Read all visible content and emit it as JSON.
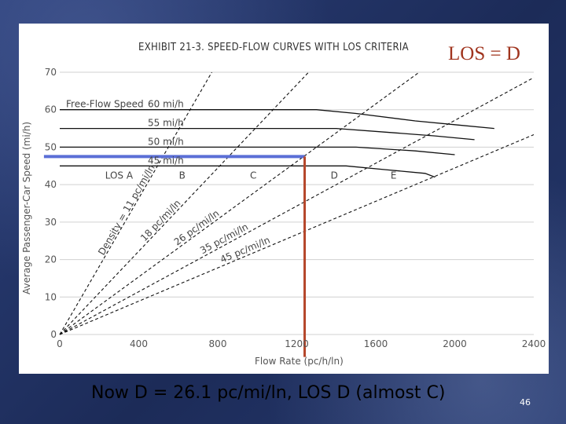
{
  "slide": {
    "caption": "Now D = 26.1 pc/mi/ln, LOS D (almost C)",
    "page_number": "46",
    "background_color": "#1c2b58"
  },
  "chart_data": {
    "type": "line",
    "title": "EXHIBIT 21-3.  SPEED-FLOW CURVES WITH LOS CRITERIA",
    "overlay_label": "LOS = D",
    "xlabel": "Flow Rate (pc/h/ln)",
    "ylabel": "Average Passenger-Car Speed (mi/h)",
    "xlim": [
      0,
      2400
    ],
    "ylim": [
      0,
      70
    ],
    "xticks": [
      0,
      400,
      800,
      1200,
      1600,
      2000,
      2400
    ],
    "yticks": [
      0,
      10,
      20,
      30,
      40,
      50,
      60,
      70
    ],
    "grid": "horizontal",
    "free_flow_label": "Free-Flow Speed",
    "speed_flow_curves": [
      {
        "name": "60 mi/h",
        "points": [
          [
            0,
            60
          ],
          [
            1300,
            60
          ],
          [
            1500,
            59
          ],
          [
            1800,
            57
          ],
          [
            2000,
            56
          ],
          [
            2200,
            55
          ]
        ]
      },
      {
        "name": "55 mi/h",
        "points": [
          [
            0,
            55
          ],
          [
            1400,
            55
          ],
          [
            1650,
            54
          ],
          [
            1900,
            53
          ],
          [
            2100,
            52
          ]
        ]
      },
      {
        "name": "50 mi/h",
        "points": [
          [
            0,
            50
          ],
          [
            1500,
            50
          ],
          [
            1800,
            49
          ],
          [
            2000,
            48
          ]
        ]
      },
      {
        "name": "45 mi/h",
        "points": [
          [
            0,
            45
          ],
          [
            1450,
            45
          ],
          [
            1650,
            44
          ],
          [
            1850,
            43
          ],
          [
            1900,
            42
          ]
        ]
      }
    ],
    "density_lines": [
      {
        "name": "Density = 11 pc/mi/ln",
        "density": 11
      },
      {
        "name": "18 pc/mi/ln",
        "density": 18
      },
      {
        "name": "26 pc/mi/ln",
        "density": 26
      },
      {
        "name": "35 pc/mi/ln",
        "density": 35
      },
      {
        "name": "45 pc/mi/ln",
        "density": 45
      }
    ],
    "los_regions": [
      {
        "name": "LOS A",
        "x": 300
      },
      {
        "name": "B",
        "x": 620
      },
      {
        "name": "C",
        "x": 980
      },
      {
        "name": "D",
        "x": 1390
      },
      {
        "name": "E",
        "x": 1690
      }
    ],
    "highlight": {
      "flow": 1240,
      "speed": 47.5,
      "horizontal_color": "#5b6fd6",
      "vertical_color": "#b5462a"
    }
  }
}
